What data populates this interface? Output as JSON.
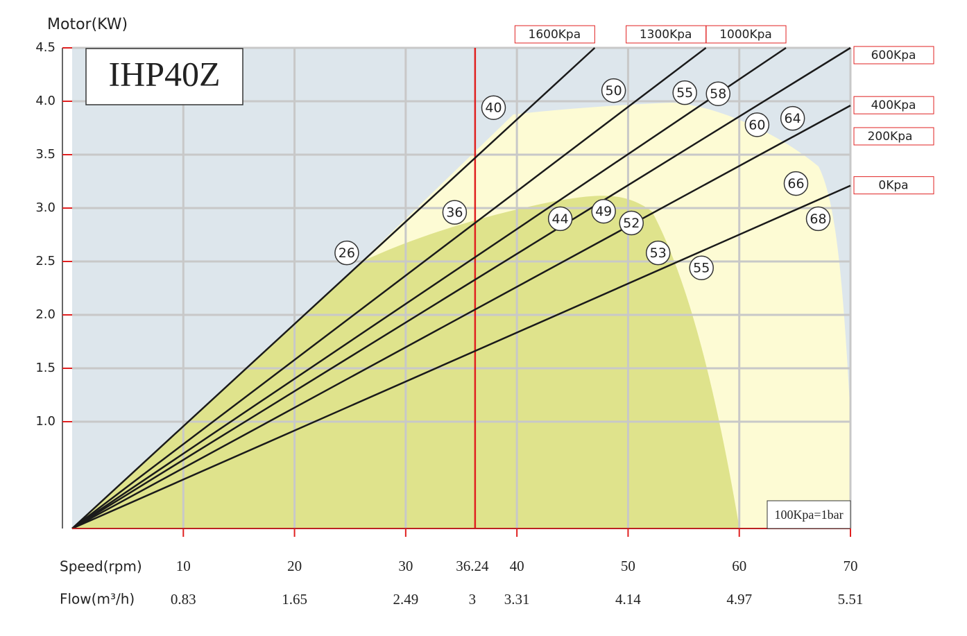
{
  "chart_data": {
    "type": "line",
    "model": "IHP40Z",
    "y_label": "Motor(KW)",
    "x_label": "Speed(rpm)",
    "flow_label": "Flow(m³/h)",
    "note": "100Kpa=1bar",
    "xlim": [
      0,
      70
    ],
    "ylim": [
      0,
      4.5
    ],
    "xticks": [
      10,
      20,
      30,
      40,
      50,
      60,
      70
    ],
    "flow_ticks": [
      0.83,
      1.65,
      2.49,
      3.31,
      4.14,
      4.97,
      5.51
    ],
    "yticks": [
      {
        "value": 1,
        "label": "1.0"
      },
      1.5,
      {
        "value": 2,
        "label": "2.0"
      },
      2.5,
      {
        "value": 3,
        "label": "3.0"
      },
      3.5,
      {
        "value": 4,
        "label": "4.0"
      },
      4.5
    ],
    "grid": true,
    "highlight": {
      "x": 36.24,
      "flow": 3,
      "color": "#e02020"
    },
    "series": [
      {
        "name": "1600Kpa",
        "color": "#1a1a1a",
        "x": [
          0,
          47
        ],
        "values": [
          0,
          4.5
        ]
      },
      {
        "name": "1300Kpa",
        "color": "#1a1a1a",
        "x": [
          0,
          57
        ],
        "values": [
          0,
          4.5
        ]
      },
      {
        "name": "1000Kpa",
        "color": "#1a1a1a",
        "x": [
          0,
          64.2
        ],
        "values": [
          0,
          4.5
        ]
      },
      {
        "name": "600Kpa",
        "color": "#1a1a1a",
        "x": [
          0,
          70
        ],
        "values": [
          0,
          4.5
        ]
      },
      {
        "name": "400Kpa",
        "color": "#1a1a1a",
        "x": [
          0,
          70
        ],
        "values": [
          0,
          3.96
        ]
      },
      {
        "name": "0Kpa",
        "color": "#1a1a1a",
        "x": [
          0,
          70
        ],
        "values": [
          0,
          3.21
        ]
      }
    ],
    "extra_pressure_label": "200Kpa",
    "annotations": [
      {
        "x": 24.7,
        "y": 2.58,
        "text": "26"
      },
      {
        "x": 37.9,
        "y": 3.94,
        "text": "40"
      },
      {
        "x": 34.4,
        "y": 2.96,
        "text": "36"
      },
      {
        "x": 48.7,
        "y": 4.1,
        "text": "50"
      },
      {
        "x": 55.1,
        "y": 4.08,
        "text": "55"
      },
      {
        "x": 58.1,
        "y": 4.07,
        "text": "58"
      },
      {
        "x": 61.6,
        "y": 3.78,
        "text": "60"
      },
      {
        "x": 64.8,
        "y": 3.84,
        "text": "64"
      },
      {
        "x": 43.9,
        "y": 2.9,
        "text": "44"
      },
      {
        "x": 47.8,
        "y": 2.97,
        "text": "49"
      },
      {
        "x": 50.3,
        "y": 2.86,
        "text": "52"
      },
      {
        "x": 65.1,
        "y": 3.23,
        "text": "66"
      },
      {
        "x": 67.1,
        "y": 2.9,
        "text": "68"
      },
      {
        "x": 52.7,
        "y": 2.58,
        "text": "53"
      },
      {
        "x": 56.6,
        "y": 2.44,
        "text": "55"
      }
    ]
  }
}
